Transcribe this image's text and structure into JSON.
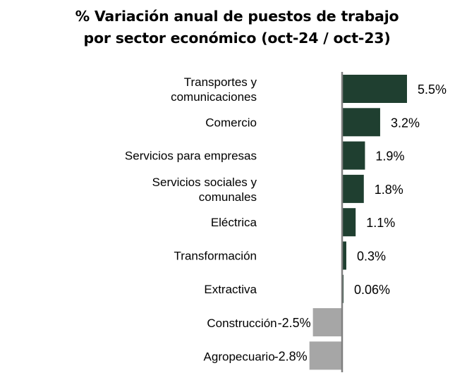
{
  "chart_data": {
    "type": "bar",
    "orientation": "horizontal",
    "title_lines": [
      "% Variación anual de puestos de trabajo",
      "por sector económico (oct-24 / oct-23)"
    ],
    "categories": [
      [
        "Transportes y",
        "comunicaciones"
      ],
      [
        "Comercio"
      ],
      [
        "Servicios para empresas"
      ],
      [
        "Servicios sociales y",
        "comunales"
      ],
      [
        "Eléctrica"
      ],
      [
        "Transformación"
      ],
      [
        "Extractiva"
      ],
      [
        "Construcción"
      ],
      [
        "Agropecuario"
      ]
    ],
    "values": [
      5.5,
      3.2,
      1.9,
      1.8,
      1.1,
      0.3,
      0.06,
      -2.5,
      -2.8
    ],
    "data_labels": [
      "5.5%",
      "3.2%",
      "1.9%",
      "1.8%",
      "1.1%",
      "0.3%",
      "0.06%",
      "-2.5%",
      "-2.8%"
    ],
    "xlabel": "",
    "ylabel": "",
    "xlim": [
      -2.8,
      5.5
    ],
    "grid": false,
    "legend": "none",
    "colors": {
      "positive": "#1f3f30",
      "negative": "#a6a6a6",
      "axis": "#808080"
    }
  }
}
